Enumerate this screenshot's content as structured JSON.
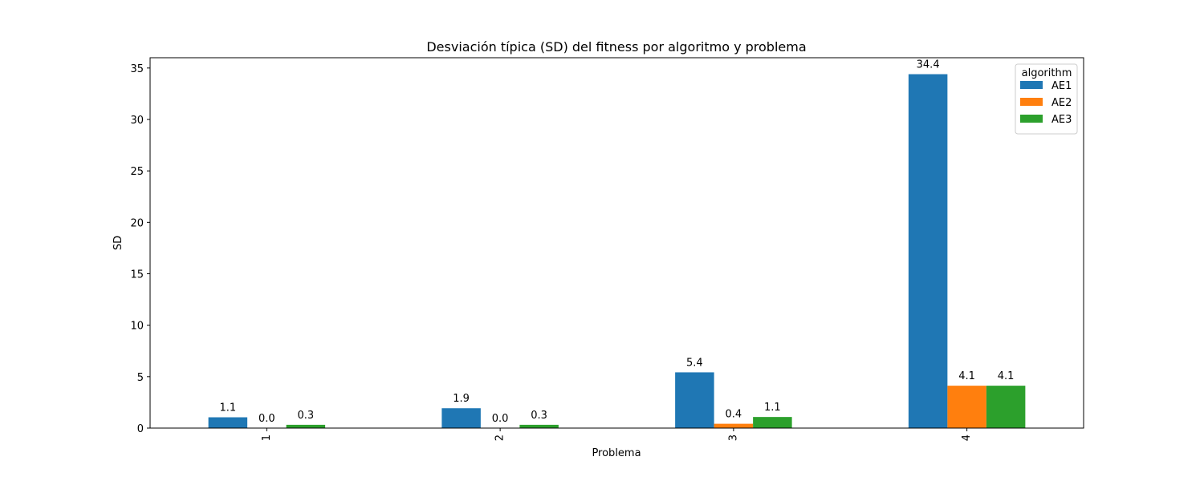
{
  "chart_data": {
    "type": "bar",
    "title": "Desviación típica (SD) del fitness por algoritmo y problema",
    "xlabel": "Problema",
    "ylabel": "SD",
    "categories": [
      "1",
      "2",
      "3",
      "4"
    ],
    "ylim": [
      0,
      36
    ],
    "yticks": [
      0,
      5,
      10,
      15,
      20,
      25,
      30,
      35
    ],
    "grid": false,
    "legend": {
      "title": "algorithm",
      "placement": "top-right"
    },
    "series": [
      {
        "name": "AE1",
        "color": "#1f77b4",
        "values": [
          1.05,
          1.93,
          5.42,
          34.4
        ],
        "labels": [
          "1.1",
          "1.9",
          "5.4",
          "34.4"
        ]
      },
      {
        "name": "AE2",
        "color": "#ff7f0e",
        "values": [
          0.0,
          0.0,
          0.42,
          4.12
        ],
        "labels": [
          "0.0",
          "0.0",
          "0.4",
          "4.1"
        ]
      },
      {
        "name": "AE3",
        "color": "#2ca02c",
        "values": [
          0.32,
          0.32,
          1.08,
          4.12
        ],
        "labels": [
          "0.3",
          "0.3",
          "1.1",
          "4.1"
        ]
      }
    ]
  }
}
